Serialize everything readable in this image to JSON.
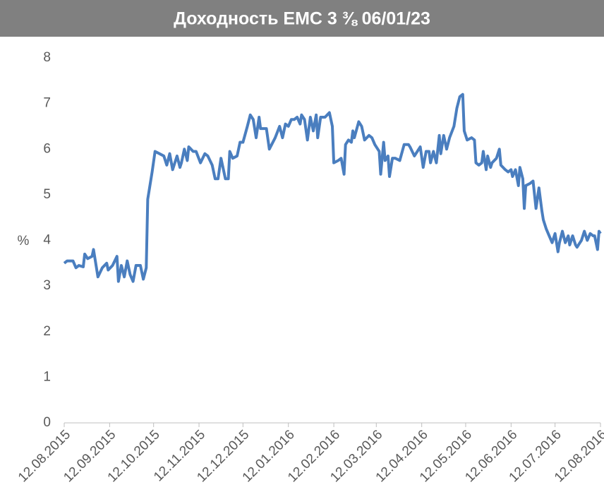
{
  "chart_data": {
    "type": "line",
    "title": "Доходность EMC 3 ⅜ 06/01/23",
    "ylabel": "%",
    "xlim": [
      "12.08.2015",
      "12.08.2016"
    ],
    "xticks": [
      "12.08.2015",
      "12.09.2015",
      "12.10.2015",
      "12.11.2015",
      "12.12.2015",
      "12.01.2016",
      "12.02.2016",
      "12.03.2016",
      "12.04.2016",
      "12.05.2016",
      "12.06.2016",
      "12.07.2016",
      "12.08.2016"
    ],
    "ylim": [
      0,
      8
    ],
    "yticks": [
      0,
      1,
      2,
      3,
      4,
      5,
      6,
      7,
      8
    ],
    "grid": false,
    "x": [
      "12.08.2015",
      "14.08.2015",
      "18.08.2015",
      "20.08.2015",
      "22.08.2015",
      "25.08.2015",
      "26.08.2015",
      "28.08.2015",
      "31.08.2015",
      "01.09.2015",
      "04.09.2015",
      "07.09.2015",
      "10.09.2015",
      "11.09.2015",
      "14.09.2015",
      "17.09.2015",
      "18.09.2015",
      "20.09.2015",
      "22.09.2015",
      "24.09.2015",
      "26.09.2015",
      "28.09.2015",
      "30.09.2015",
      "03.10.2015",
      "05.10.2015",
      "07.10.2015",
      "08.10.2015",
      "11.10.2015",
      "13.10.2015",
      "16.10.2015",
      "19.10.2015",
      "21.10.2015",
      "23.10.2015",
      "25.10.2015",
      "28.10.2015",
      "30.10.2015",
      "31.10.2015",
      "02.11.2015",
      "04.11.2015",
      "05.11.2015",
      "08.11.2015",
      "10.11.2015",
      "13.11.2015",
      "16.11.2015",
      "18.11.2015",
      "21.11.2015",
      "23.11.2015",
      "25.11.2015",
      "27.11.2015",
      "30.11.2015",
      "02.12.2015",
      "03.12.2015",
      "05.12.2015",
      "08.12.2015",
      "10.12.2015",
      "12.12.2015",
      "15.12.2015",
      "17.12.2015",
      "19.12.2015",
      "21.12.2015",
      "23.12.2015",
      "24.12.2015",
      "28.12.2015",
      "30.12.2015",
      "03.01.2016",
      "06.01.2016",
      "08.01.2016",
      "10.01.2016",
      "12.01.2016",
      "14.01.2016",
      "16.01.2016",
      "18.01.2016",
      "20.01.2016",
      "21.01.2016",
      "23.01.2016",
      "25.01.2016",
      "27.01.2016",
      "29.01.2016",
      "31.01.2016",
      "01.02.2016",
      "03.02.2016",
      "06.02.2016",
      "09.02.2016",
      "11.02.2016",
      "12.02.2016",
      "15.02.2016",
      "17.02.2016",
      "19.02.2016",
      "20.02.2016",
      "22.02.2016",
      "24.02.2016",
      "25.02.2016",
      "26.02.2016",
      "29.02.2016",
      "02.03.2016",
      "04.03.2016",
      "07.03.2016",
      "09.03.2016",
      "11.03.2016",
      "14.03.2016",
      "15.03.2016",
      "17.03.2016",
      "18.03.2016",
      "20.03.2016",
      "21.03.2016",
      "23.03.2016",
      "25.03.2016",
      "28.03.2016",
      "31.03.2016",
      "03.04.2016",
      "04.04.2016",
      "07.04.2016",
      "11.04.2016",
      "13.04.2016",
      "15.04.2016",
      "17.04.2016",
      "18.04.2016",
      "20.04.2016",
      "22.04.2016",
      "24.04.2016",
      "25.04.2016",
      "27.04.2016",
      "29.04.2016",
      "01.05.2016",
      "04.05.2016",
      "06.05.2016",
      "08.05.2016",
      "10.05.2016",
      "11.05.2016",
      "13.05.2016",
      "16.05.2016",
      "18.05.2016",
      "19.05.2016",
      "21.05.2016",
      "23.05.2016",
      "24.05.2016",
      "26.05.2016",
      "27.05.2016",
      "29.05.2016",
      "30.05.2016",
      "02.06.2016",
      "04.06.2016",
      "05.06.2016",
      "08.06.2016",
      "10.06.2016",
      "12.06.2016",
      "13.06.2016",
      "15.06.2016",
      "17.06.2016",
      "18.06.2016",
      "20.06.2016",
      "21.06.2016",
      "22.06.2016",
      "25.06.2016",
      "27.06.2016",
      "29.06.2016",
      "01.07.2016",
      "03.07.2016",
      "04.07.2016",
      "06.07.2016",
      "08.07.2016",
      "10.07.2016",
      "12.07.2016",
      "14.07.2016",
      "15.07.2016",
      "17.07.2016",
      "19.07.2016",
      "21.07.2016",
      "22.07.2016",
      "24.07.2016",
      "26.07.2016",
      "27.07.2016",
      "29.07.2016",
      "30.07.2016",
      "01.08.2016",
      "03.08.2016",
      "05.08.2016",
      "07.08.2016",
      "08.08.2016",
      "10.08.2016",
      "11.08.2016",
      "12.08.2016"
    ],
    "series": [
      {
        "color": "#4a7ebf",
        "values": [
          3.5,
          3.55,
          3.55,
          3.4,
          3.45,
          3.42,
          3.7,
          3.6,
          3.65,
          3.8,
          3.2,
          3.4,
          3.5,
          3.35,
          3.45,
          3.65,
          3.1,
          3.45,
          3.2,
          3.55,
          3.25,
          3.1,
          3.45,
          3.45,
          3.15,
          3.4,
          4.9,
          5.5,
          5.95,
          5.9,
          5.85,
          5.65,
          5.9,
          5.55,
          5.85,
          5.6,
          5.7,
          6.0,
          5.75,
          6.05,
          5.95,
          5.95,
          5.7,
          5.9,
          5.85,
          5.65,
          5.35,
          5.35,
          5.8,
          5.35,
          5.35,
          5.95,
          5.8,
          5.85,
          6.15,
          6.15,
          6.5,
          6.75,
          6.65,
          6.25,
          6.7,
          6.45,
          6.45,
          6.0,
          6.25,
          6.5,
          6.25,
          6.55,
          6.5,
          6.65,
          6.65,
          6.7,
          6.55,
          6.75,
          6.65,
          6.2,
          6.7,
          6.4,
          6.75,
          6.25,
          6.7,
          6.7,
          6.8,
          6.5,
          5.7,
          5.75,
          5.8,
          5.45,
          6.1,
          6.2,
          6.15,
          6.4,
          6.25,
          6.6,
          6.5,
          6.2,
          6.3,
          6.25,
          6.1,
          5.95,
          5.45,
          6.15,
          5.75,
          5.85,
          5.4,
          5.8,
          5.8,
          5.75,
          6.1,
          6.1,
          6.05,
          5.85,
          6.05,
          5.6,
          5.95,
          5.95,
          5.7,
          5.95,
          5.7,
          6.3,
          5.9,
          6.3,
          6.0,
          6.25,
          6.5,
          6.9,
          7.15,
          7.2,
          6.4,
          6.2,
          6.25,
          6.2,
          5.7,
          5.65,
          5.7,
          5.95,
          5.55,
          5.85,
          5.6,
          5.7,
          5.8,
          6.0,
          5.65,
          5.55,
          5.5,
          5.55,
          5.4,
          5.55,
          5.2,
          5.6,
          5.35,
          4.7,
          5.2,
          5.25,
          5.3,
          4.7,
          5.15,
          4.65,
          4.45,
          4.25,
          4.1,
          3.95,
          4.15,
          3.75,
          3.95,
          4.2,
          3.95,
          4.1,
          3.9,
          4.1,
          3.9,
          3.85,
          3.95,
          4.0,
          4.2,
          4.0,
          4.15,
          4.1,
          4.1,
          3.8,
          4.2,
          4.15
        ]
      }
    ]
  }
}
